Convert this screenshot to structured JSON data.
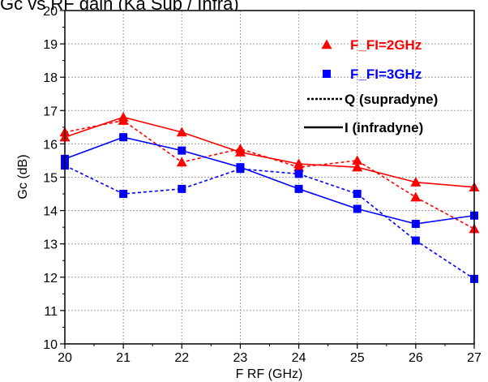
{
  "chart_data": {
    "type": "line",
    "title": "Gc vs RF gain (Ka Sup / Infra)",
    "xlabel": "F RF (GHz)",
    "ylabel": "Gc (dB)",
    "xlim": [
      20,
      27
    ],
    "ylim": [
      10,
      20
    ],
    "x": [
      20,
      21,
      22,
      23,
      24,
      25,
      26,
      27
    ],
    "xticks": [
      "20",
      "21",
      "22",
      "23",
      "24",
      "25",
      "26",
      "27"
    ],
    "yticks": [
      "10",
      "11",
      "12",
      "13",
      "14",
      "15",
      "16",
      "17",
      "18",
      "19",
      "20"
    ],
    "grid": true,
    "legend": {
      "placement": "top-right",
      "entries": [
        {
          "label": "F_FI=2GHz",
          "color": "#ff0000",
          "marker": "triangle"
        },
        {
          "label": "F_FI=3GHz",
          "color": "#0000ff",
          "marker": "square"
        },
        {
          "label": "Q (supradyne)",
          "color": "#000000",
          "line": "dashed"
        },
        {
          "label": "I (infradyne)",
          "color": "#000000",
          "line": "solid"
        }
      ]
    },
    "series": [
      {
        "name": "F_FI=2GHz Q (supradyne)",
        "color": "#ff0000",
        "marker": "triangle",
        "line": "dashed",
        "values": [
          16.35,
          16.7,
          15.45,
          15.85,
          15.3,
          15.5,
          14.4,
          13.45
        ]
      },
      {
        "name": "F_FI=2GHz I (infradyne)",
        "color": "#ff0000",
        "marker": "triangle",
        "line": "solid",
        "values": [
          16.2,
          16.8,
          16.35,
          15.75,
          15.4,
          15.3,
          14.85,
          14.7
        ]
      },
      {
        "name": "F_FI=3GHz Q (supradyne)",
        "color": "#0000ff",
        "marker": "square",
        "line": "dashed",
        "values": [
          15.35,
          14.5,
          14.65,
          15.25,
          15.1,
          14.5,
          13.1,
          11.95
        ]
      },
      {
        "name": "F_FI=3GHz I (infradyne)",
        "color": "#0000ff",
        "marker": "square",
        "line": "solid",
        "values": [
          15.55,
          16.2,
          15.8,
          15.3,
          14.65,
          14.05,
          13.6,
          13.85
        ]
      }
    ]
  }
}
